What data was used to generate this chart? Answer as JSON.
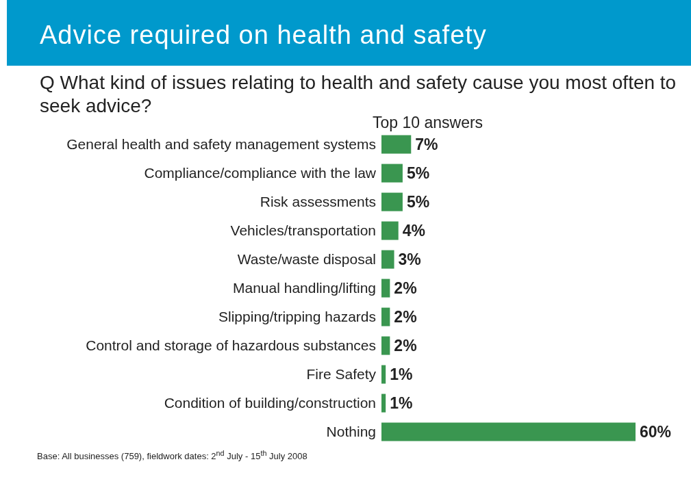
{
  "chart_data": {
    "type": "bar",
    "orientation": "horizontal",
    "title": "Advice required on health and safety",
    "subtitle": "Q  What kind of issues relating to health and safety cause you most often to seek advice?",
    "categories": [
      "General health and safety management systems",
      "Compliance/compliance with the law",
      "Risk assessments",
      "Vehicles/transportation",
      "Waste/waste disposal",
      "Manual handling/lifting",
      "Slipping/tripping hazards",
      "Control and storage of hazardous substances",
      "Fire Safety",
      "Condition of building/construction",
      "Nothing"
    ],
    "values": [
      7,
      5,
      5,
      4,
      3,
      2,
      2,
      2,
      1,
      1,
      60
    ],
    "value_labels": [
      "7%",
      "5%",
      "5%",
      "4%",
      "3%",
      "2%",
      "2%",
      "2%",
      "1%",
      "1%",
      "60%"
    ],
    "color": "#3a9650",
    "xlim": [
      0,
      60
    ],
    "annotations": [
      "Top 10 answers",
      "Base: All businesses (759), fieldwork dates: 2$^{nd}$ July - 15$^{th}$ July 2008"
    ]
  }
}
